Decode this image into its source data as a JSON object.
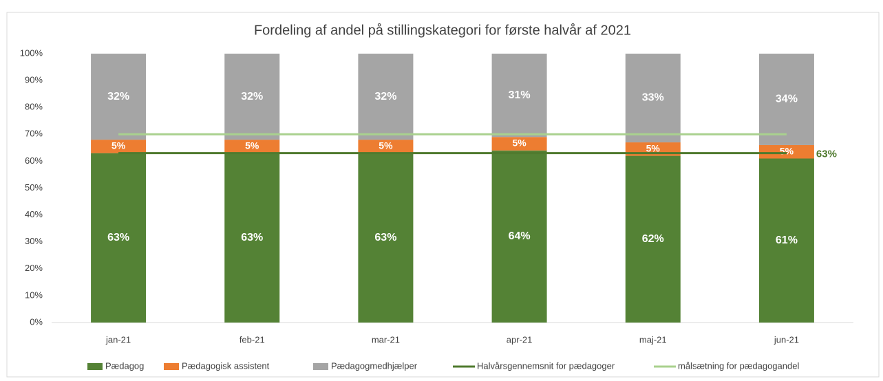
{
  "chart_data": {
    "type": "stacked_bar",
    "title": "Fordeling af andel på stillingskategori for første halvår af 2021",
    "categories": [
      "jan-21",
      "feb-21",
      "mar-21",
      "apr-21",
      "maj-21",
      "jun-21"
    ],
    "series": [
      {
        "name": "Pædagog",
        "type": "bar",
        "color": "#548235",
        "values": [
          63,
          63,
          63,
          64,
          62,
          61
        ],
        "value_labels": [
          "63%",
          "63%",
          "63%",
          "64%",
          "62%",
          "61%"
        ]
      },
      {
        "name": "Pædagogisk assistent",
        "type": "bar",
        "color": "#ed7d31",
        "values": [
          5,
          5,
          5,
          5,
          5,
          5
        ],
        "value_labels": [
          "5%",
          "5%",
          "5%",
          "5%",
          "5%",
          "5%"
        ]
      },
      {
        "name": "Pædagogmedhjælper",
        "type": "bar",
        "color": "#a5a5a5",
        "values": [
          32,
          32,
          32,
          31,
          33,
          34
        ],
        "value_labels": [
          "32%",
          "32%",
          "32%",
          "31%",
          "33%",
          "34%"
        ]
      },
      {
        "name": "Halvårsgennemsnit for pædagoger",
        "type": "line",
        "color": "#4f7a2e",
        "values": [
          63,
          63,
          63,
          63,
          63,
          63
        ],
        "value_labels": [
          null,
          null,
          null,
          null,
          null,
          "63%"
        ]
      },
      {
        "name": "målsætning for pædagogandel",
        "type": "line",
        "color": "#a9d18e",
        "values": [
          70,
          70,
          70,
          70,
          70,
          70
        ]
      }
    ],
    "ylim": [
      0,
      100
    ],
    "yticks": [
      {
        "value": 0,
        "label": "0%"
      },
      {
        "value": 10,
        "label": "10%"
      },
      {
        "value": 20,
        "label": "20%"
      },
      {
        "value": 30,
        "label": "30%"
      },
      {
        "value": 40,
        "label": "40%"
      },
      {
        "value": 50,
        "label": "50%"
      },
      {
        "value": 60,
        "label": "60%"
      },
      {
        "value": 70,
        "label": "70%"
      },
      {
        "value": 80,
        "label": "80%"
      },
      {
        "value": 90,
        "label": "90%"
      },
      {
        "value": 100,
        "label": "100%"
      }
    ],
    "legend": "bottom"
  }
}
